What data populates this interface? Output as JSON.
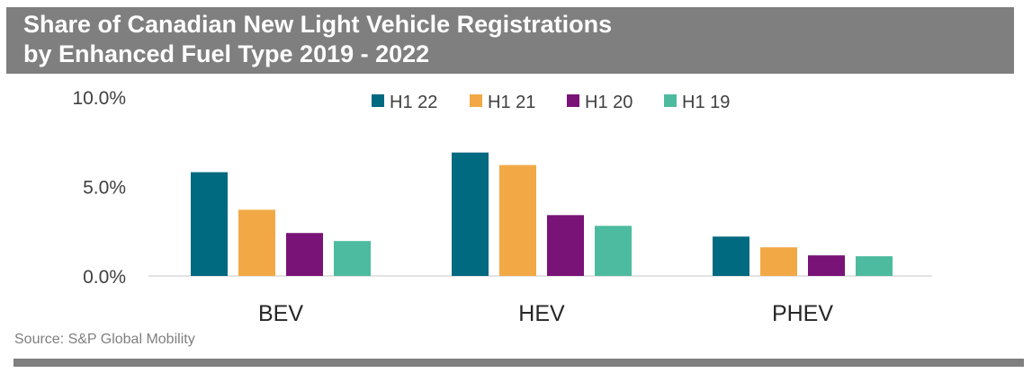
{
  "header": {
    "title_line1": "Share of Canadian New Light Vehicle Registrations",
    "title_line2": "by Enhanced Fuel Type 2019 - 2022"
  },
  "source": "Source: S&P Global Mobility",
  "chart_data": {
    "type": "bar",
    "title": "Share of Canadian New Light Vehicle Registrations by Enhanced Fuel Type 2019 - 2022",
    "categories": [
      "BEV",
      "HEV",
      "PHEV"
    ],
    "series": [
      {
        "name": "H1 22",
        "color": "#006a81",
        "values": [
          5.8,
          6.9,
          2.2
        ]
      },
      {
        "name": "H1 21",
        "color": "#f2a945",
        "values": [
          3.7,
          6.2,
          1.6
        ]
      },
      {
        "name": "H1 20",
        "color": "#7a1378",
        "values": [
          2.4,
          3.4,
          1.15
        ]
      },
      {
        "name": "H1 19",
        "color": "#4dbb9f",
        "values": [
          1.95,
          2.8,
          1.1
        ]
      }
    ],
    "y_ticks": [
      {
        "value": 0,
        "label": "0.0%"
      },
      {
        "value": 5,
        "label": "5.0%"
      },
      {
        "value": 10,
        "label": "10.0%"
      }
    ],
    "ylim": [
      0,
      10
    ],
    "xlabel": "",
    "ylabel": "",
    "grid": false,
    "legend_position": "top"
  }
}
